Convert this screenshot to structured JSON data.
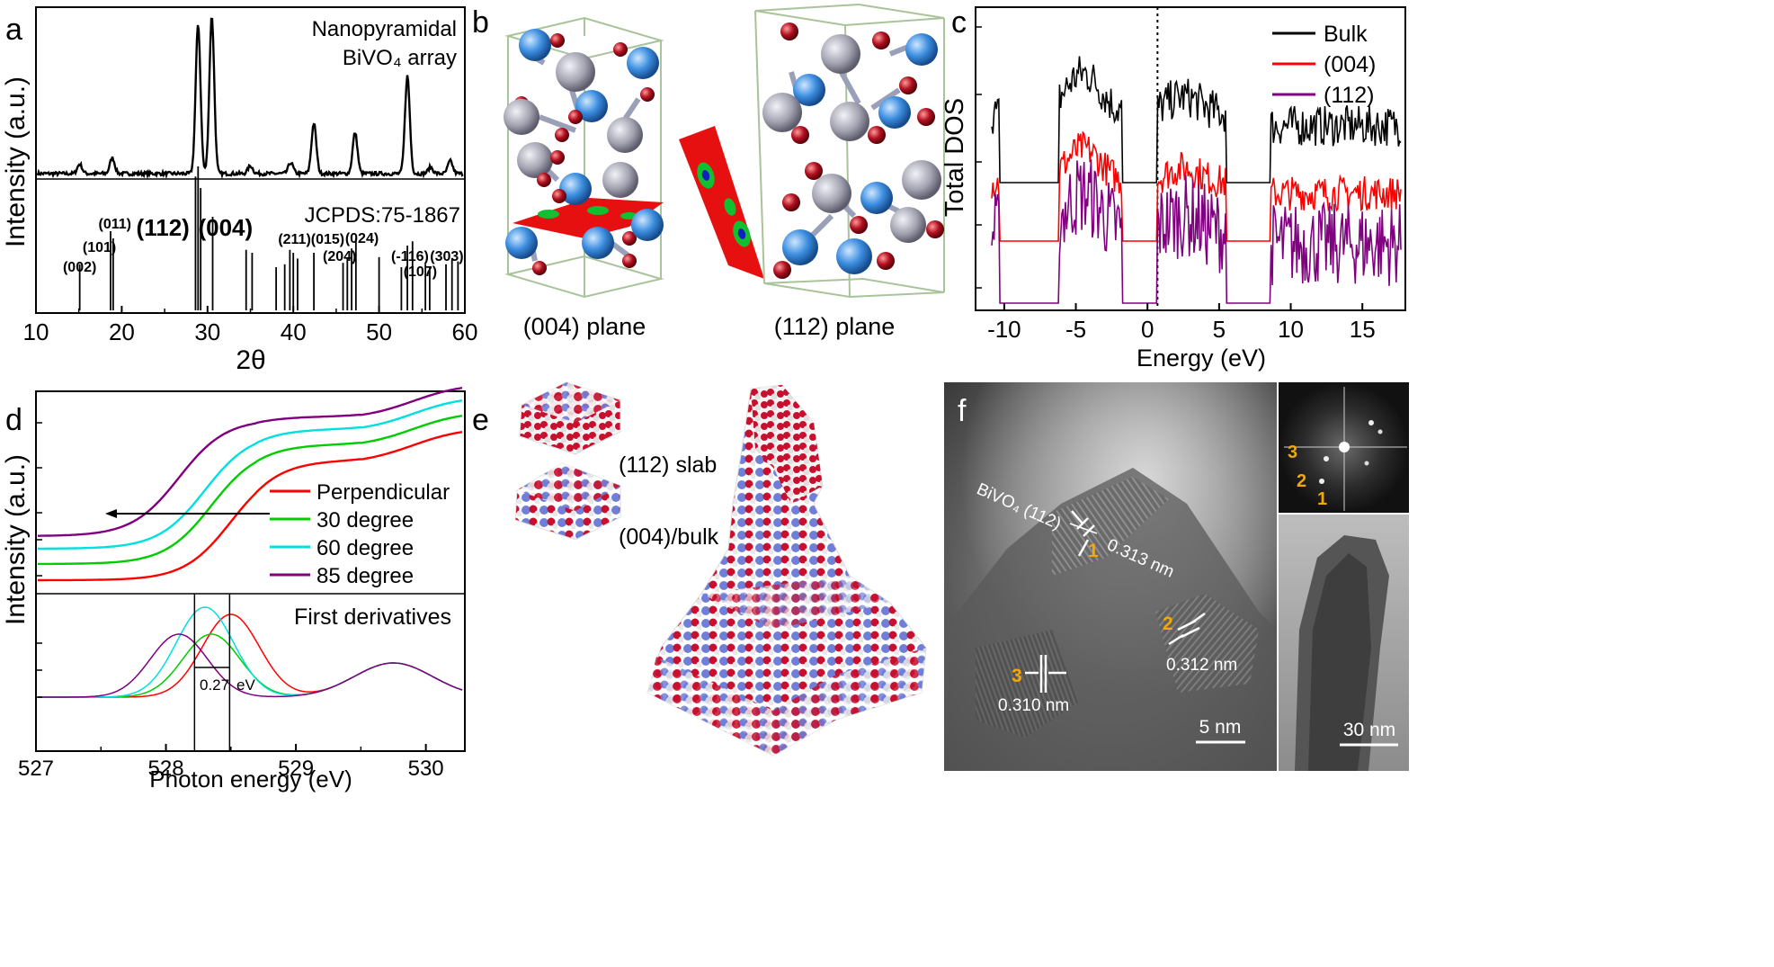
{
  "panels": {
    "a": {
      "letter": "a"
    },
    "b": {
      "letter": "b"
    },
    "c": {
      "letter": "c"
    },
    "d": {
      "letter": "d"
    },
    "e": {
      "letter": "e"
    },
    "f": {
      "letter": "f"
    }
  },
  "chart_data": [
    {
      "id": "a",
      "type": "line",
      "title_line1": "Nanopyramidal",
      "title_line2": "BiVO₄ array",
      "reference": "JCPDS:75-1867",
      "xlabel": "2θ",
      "ylabel": "Intensity (a.u.)",
      "xlim": [
        10,
        60
      ],
      "xticks": [
        "10",
        "20",
        "30",
        "40",
        "50",
        "60"
      ],
      "peaks": [
        {
          "x": 15.1,
          "h": 0.06
        },
        {
          "x": 18.9,
          "h": 0.1
        },
        {
          "x": 28.9,
          "h": 0.95
        },
        {
          "x": 30.5,
          "h": 1.0
        },
        {
          "x": 35.0,
          "h": 0.05
        },
        {
          "x": 39.7,
          "h": 0.07
        },
        {
          "x": 42.4,
          "h": 0.32
        },
        {
          "x": 47.2,
          "h": 0.26
        },
        {
          "x": 53.3,
          "h": 0.62
        },
        {
          "x": 56.0,
          "h": 0.04
        },
        {
          "x": 58.3,
          "h": 0.08
        }
      ],
      "ref_lines": [
        {
          "x": 15.1,
          "h": 0.32
        },
        {
          "x": 18.7,
          "h": 0.55
        },
        {
          "x": 19.0,
          "h": 0.5
        },
        {
          "x": 28.6,
          "h": 0.93
        },
        {
          "x": 28.9,
          "h": 1.0
        },
        {
          "x": 29.2,
          "h": 0.85
        },
        {
          "x": 30.6,
          "h": 0.65
        },
        {
          "x": 34.5,
          "h": 0.42
        },
        {
          "x": 35.2,
          "h": 0.4
        },
        {
          "x": 38.0,
          "h": 0.3
        },
        {
          "x": 39.0,
          "h": 0.32
        },
        {
          "x": 39.6,
          "h": 0.42
        },
        {
          "x": 40.0,
          "h": 0.4
        },
        {
          "x": 40.5,
          "h": 0.36
        },
        {
          "x": 42.4,
          "h": 0.4
        },
        {
          "x": 45.8,
          "h": 0.33
        },
        {
          "x": 46.3,
          "h": 0.36
        },
        {
          "x": 46.8,
          "h": 0.43
        },
        {
          "x": 47.3,
          "h": 0.5
        },
        {
          "x": 50.0,
          "h": 0.37
        },
        {
          "x": 52.6,
          "h": 0.3
        },
        {
          "x": 53.3,
          "h": 0.45
        },
        {
          "x": 53.9,
          "h": 0.48
        },
        {
          "x": 55.4,
          "h": 0.32
        },
        {
          "x": 55.9,
          "h": 0.3
        },
        {
          "x": 57.8,
          "h": 0.32
        },
        {
          "x": 58.5,
          "h": 0.36
        },
        {
          "x": 59.2,
          "h": 0.34
        }
      ],
      "annotations": [
        {
          "text": "(002)",
          "x": 15.1,
          "size": "small"
        },
        {
          "text": "(101)",
          "x": 17.4,
          "size": "small"
        },
        {
          "text": "(011)",
          "x": 19.2,
          "size": "small"
        },
        {
          "text": "(112)",
          "x": 24.8,
          "size": "large"
        },
        {
          "text": "(004)",
          "x": 32.1,
          "size": "large"
        },
        {
          "text": "(211)(015)",
          "x": 42.1,
          "size": "small"
        },
        {
          "text": "(204)",
          "x": 45.4,
          "size": "small"
        },
        {
          "text": "(024)",
          "x": 48.0,
          "size": "small"
        },
        {
          "text": "(-116)",
          "x": 53.6,
          "size": "small"
        },
        {
          "text": "(107)",
          "x": 54.8,
          "size": "small"
        },
        {
          "text": "(303)",
          "x": 57.9,
          "size": "small"
        }
      ]
    },
    {
      "id": "c",
      "type": "line",
      "xlabel": "Energy (eV)",
      "ylabel": "Total DOS",
      "xlim": [
        -12,
        18
      ],
      "xticks": [
        "-10",
        "-5",
        "0",
        "5",
        "10",
        "15"
      ],
      "fermi_level": 0.7,
      "series": [
        {
          "name": "Bulk",
          "color": "#000000"
        },
        {
          "name": "(004)",
          "color": "#ff0000"
        },
        {
          "name": "(112)",
          "color": "#800080"
        }
      ]
    },
    {
      "id": "d",
      "type": "line",
      "ylabel": "Intensity (a.u.)",
      "xlabel": "Photon energy (eV)",
      "xlim": [
        527,
        530.3
      ],
      "xticks": [
        "527",
        "528",
        "529",
        "530"
      ],
      "derivative_label": "First derivatives",
      "shift_label": "0.27",
      "shift_unit": "eV",
      "series": [
        {
          "name": "Perpendicular",
          "color": "#ff0000",
          "edge": 528.5
        },
        {
          "name": "30 degree",
          "color": "#00cc00",
          "edge": 528.35
        },
        {
          "name": "60 degree",
          "color": "#00e0e0",
          "edge": 528.3
        },
        {
          "name": "85 degree",
          "color": "#800080",
          "edge": 528.1
        }
      ]
    }
  ],
  "panel_b": {
    "left_caption": "(004) plane",
    "right_caption": "(112) plane"
  },
  "panel_e": {
    "slab_label": "(112) slab",
    "bulk_label": "(004)/bulk"
  },
  "panel_f": {
    "plane_label": "BiVO₄ (112)",
    "spacing_1": "0.313 nm",
    "spacing_2": "0.312 nm",
    "spacing_3": "0.310 nm",
    "n1": "1",
    "n2": "2",
    "n3": "3",
    "fft_1": "1",
    "fft_2": "2",
    "fft_3": "3",
    "scale_main": "5 nm",
    "scale_inset": "30 nm"
  },
  "colors": {
    "bulk": "#000000",
    "slab004": "#ff0000",
    "slab112": "#800080",
    "orange": "#f5a800"
  }
}
